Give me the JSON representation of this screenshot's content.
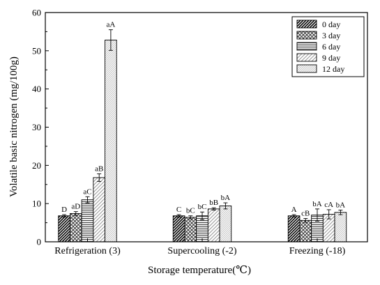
{
  "chart_data": {
    "type": "bar",
    "xlabel": "Storage temperature(℃)",
    "ylabel": "Volatile basic nitrogen (mg/100g)",
    "ylim": [
      0,
      60
    ],
    "yticks": [
      0,
      10,
      20,
      30,
      40,
      50,
      60
    ],
    "grid": false,
    "legend_position": "top-right",
    "categories": [
      "Refrigeration (3)",
      "Supercooling (-2)",
      "Freezing (-18)"
    ],
    "series": [
      {
        "name": "0 day",
        "values": [
          6.8,
          6.8,
          6.8
        ],
        "errors": [
          0.3,
          0.3,
          0.3
        ],
        "labels": [
          "D",
          "C",
          "A"
        ],
        "pattern": "dense-diagonal"
      },
      {
        "name": "3 day",
        "values": [
          7.4,
          6.4,
          5.6
        ],
        "errors": [
          0.5,
          0.4,
          0.5
        ],
        "labels": [
          "aD",
          "bC",
          "cB"
        ],
        "pattern": "crosshatch"
      },
      {
        "name": "6 day",
        "values": [
          11.0,
          6.8,
          7.0
        ],
        "errors": [
          0.8,
          1.0,
          1.6
        ],
        "labels": [
          "aC",
          "bC",
          "bA"
        ],
        "pattern": "horizontal"
      },
      {
        "name": "9 day",
        "values": [
          16.8,
          8.6,
          7.2
        ],
        "errors": [
          1.0,
          0.3,
          1.2
        ],
        "labels": [
          "aB",
          "bB",
          "cA"
        ],
        "pattern": "light-diagonal"
      },
      {
        "name": "12 day",
        "values": [
          52.8,
          9.4,
          7.7
        ],
        "errors": [
          2.7,
          0.8,
          0.6
        ],
        "labels": [
          "aA",
          "bA",
          "bA"
        ],
        "pattern": "fine-diagonal"
      }
    ]
  }
}
